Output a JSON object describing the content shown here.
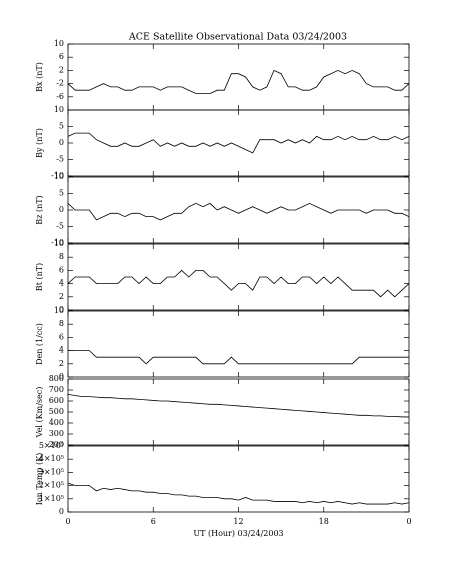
{
  "chart_data": [
    {
      "type": "line",
      "title": "ACE Satellite Observational Data   03/24/2003",
      "ylabel": "Bx (nT)",
      "xlim": [
        0,
        24
      ],
      "ylim": [
        -10,
        10
      ],
      "yticks": [
        -6,
        -2,
        2,
        6,
        10
      ],
      "color": "#000000",
      "x": [
        0,
        0.5,
        1,
        1.5,
        2,
        2.5,
        3,
        3.5,
        4,
        4.5,
        5,
        5.5,
        6,
        6.5,
        7,
        7.5,
        8,
        8.5,
        9,
        9.5,
        10,
        10.5,
        11,
        11.5,
        12,
        12.5,
        13,
        13.5,
        14,
        14.5,
        15,
        15.5,
        16,
        16.5,
        17,
        17.5,
        18,
        18.5,
        19,
        19.5,
        20,
        20.5,
        21,
        21.5,
        22,
        22.5,
        23,
        23.5,
        24
      ],
      "values": [
        -2,
        -4,
        -4,
        -4,
        -3,
        -2,
        -3,
        -3,
        -4,
        -4,
        -3,
        -3,
        -3,
        -4,
        -3,
        -3,
        -3,
        -4,
        -5,
        -5,
        -5,
        -4,
        -4,
        1,
        1,
        0,
        -3,
        -4,
        -3,
        2,
        1,
        -3,
        -3,
        -4,
        -4,
        -3,
        0,
        1,
        2,
        1,
        2,
        1,
        -2,
        -3,
        -3,
        -3,
        -4,
        -4,
        -2
      ]
    },
    {
      "type": "line",
      "ylabel": "By (nT)",
      "xlim": [
        0,
        24
      ],
      "ylim": [
        -10,
        10
      ],
      "yticks": [
        -10,
        -5,
        0,
        5,
        10
      ],
      "color": "#000000",
      "x": [
        0,
        0.5,
        1,
        1.5,
        2,
        2.5,
        3,
        3.5,
        4,
        4.5,
        5,
        5.5,
        6,
        6.5,
        7,
        7.5,
        8,
        8.5,
        9,
        9.5,
        10,
        10.5,
        11,
        11.5,
        12,
        12.5,
        13,
        13.5,
        14,
        14.5,
        15,
        15.5,
        16,
        16.5,
        17,
        17.5,
        18,
        18.5,
        19,
        19.5,
        20,
        20.5,
        21,
        21.5,
        22,
        22.5,
        23,
        23.5,
        24
      ],
      "values": [
        2,
        3,
        3,
        3,
        1,
        0,
        -1,
        -1,
        0,
        -1,
        -1,
        0,
        1,
        -1,
        0,
        -1,
        0,
        -1,
        -1,
        0,
        -1,
        0,
        -1,
        0,
        -1,
        -2,
        -3,
        1,
        1,
        1,
        0,
        1,
        0,
        1,
        0,
        2,
        1,
        1,
        2,
        1,
        2,
        1,
        1,
        2,
        1,
        1,
        2,
        1,
        2
      ]
    },
    {
      "type": "line",
      "ylabel": "Bz (nT)",
      "xlim": [
        0,
        24
      ],
      "ylim": [
        -10,
        10
      ],
      "yticks": [
        -10,
        -5,
        0,
        5,
        10
      ],
      "color": "#000000",
      "x": [
        0,
        0.5,
        1,
        1.5,
        2,
        2.5,
        3,
        3.5,
        4,
        4.5,
        5,
        5.5,
        6,
        6.5,
        7,
        7.5,
        8,
        8.5,
        9,
        9.5,
        10,
        10.5,
        11,
        11.5,
        12,
        12.5,
        13,
        13.5,
        14,
        14.5,
        15,
        15.5,
        16,
        16.5,
        17,
        17.5,
        18,
        18.5,
        19,
        19.5,
        20,
        20.5,
        21,
        21.5,
        22,
        22.5,
        23,
        23.5,
        24
      ],
      "values": [
        2,
        0,
        0,
        0,
        -3,
        -2,
        -1,
        -1,
        -2,
        -1,
        -1,
        -2,
        -2,
        -3,
        -2,
        -1,
        -1,
        1,
        2,
        1,
        2,
        0,
        1,
        0,
        -1,
        0,
        1,
        0,
        -1,
        0,
        1,
        0,
        0,
        1,
        2,
        1,
        0,
        -1,
        0,
        0,
        0,
        0,
        -1,
        0,
        0,
        0,
        -1,
        -1,
        -2
      ]
    },
    {
      "type": "line",
      "ylabel": "Bt (nT)",
      "xlim": [
        0,
        24
      ],
      "ylim": [
        0,
        10
      ],
      "yticks": [
        0,
        2,
        4,
        6,
        8,
        10
      ],
      "color": "#000000",
      "x": [
        0,
        0.5,
        1,
        1.5,
        2,
        2.5,
        3,
        3.5,
        4,
        4.5,
        5,
        5.5,
        6,
        6.5,
        7,
        7.5,
        8,
        8.5,
        9,
        9.5,
        10,
        10.5,
        11,
        11.5,
        12,
        12.5,
        13,
        13.5,
        14,
        14.5,
        15,
        15.5,
        16,
        16.5,
        17,
        17.5,
        18,
        18.5,
        19,
        19.5,
        20,
        20.5,
        21,
        21.5,
        22,
        22.5,
        23,
        23.5,
        24
      ],
      "values": [
        4,
        5,
        5,
        5,
        4,
        4,
        4,
        4,
        5,
        5,
        4,
        5,
        4,
        4,
        5,
        5,
        6,
        5,
        6,
        6,
        5,
        5,
        4,
        3,
        4,
        4,
        3,
        5,
        5,
        4,
        5,
        4,
        4,
        5,
        5,
        4,
        5,
        4,
        5,
        4,
        3,
        3,
        3,
        3,
        2,
        3,
        2,
        3,
        4
      ]
    },
    {
      "type": "line",
      "ylabel": "Den (1/cc)",
      "xlim": [
        0,
        24
      ],
      "ylim": [
        0,
        10
      ],
      "yticks": [
        0,
        2,
        4,
        6,
        8,
        10
      ],
      "color": "#000000",
      "x": [
        0,
        0.5,
        1,
        1.5,
        2,
        2.5,
        3,
        3.5,
        4,
        4.5,
        5,
        5.5,
        6,
        6.5,
        7,
        7.5,
        8,
        8.5,
        9,
        9.5,
        10,
        10.5,
        11,
        11.5,
        12,
        12.5,
        13,
        13.5,
        14,
        14.5,
        15,
        15.5,
        16,
        16.5,
        17,
        17.5,
        18,
        18.5,
        19,
        19.5,
        20,
        20.5,
        21,
        21.5,
        22,
        22.5,
        23,
        23.5,
        24
      ],
      "values": [
        4,
        4,
        4,
        4,
        3,
        3,
        3,
        3,
        3,
        3,
        3,
        2,
        3,
        3,
        3,
        3,
        3,
        3,
        3,
        2,
        2,
        2,
        2,
        3,
        2,
        2,
        2,
        2,
        2,
        2,
        2,
        2,
        2,
        2,
        2,
        2,
        2,
        2,
        2,
        2,
        2,
        3,
        3,
        3,
        3,
        3,
        3,
        3,
        3
      ]
    },
    {
      "type": "line",
      "ylabel": "Vel (Km/sec)",
      "xlim": [
        0,
        24
      ],
      "ylim": [
        200,
        800
      ],
      "yticks": [
        200,
        300,
        400,
        500,
        600,
        700,
        800
      ],
      "color": "#000000",
      "x": [
        0,
        0.5,
        1,
        1.5,
        2,
        2.5,
        3,
        3.5,
        4,
        4.5,
        5,
        5.5,
        6,
        6.5,
        7,
        7.5,
        8,
        8.5,
        9,
        9.5,
        10,
        10.5,
        11,
        11.5,
        12,
        12.5,
        13,
        13.5,
        14,
        14.5,
        15,
        15.5,
        16,
        16.5,
        17,
        17.5,
        18,
        18.5,
        19,
        19.5,
        20,
        20.5,
        21,
        21.5,
        22,
        22.5,
        23,
        23.5,
        24
      ],
      "values": [
        660,
        650,
        640,
        640,
        635,
        630,
        630,
        625,
        620,
        620,
        615,
        610,
        605,
        600,
        600,
        595,
        590,
        585,
        580,
        575,
        570,
        570,
        565,
        560,
        555,
        550,
        545,
        540,
        535,
        530,
        525,
        520,
        515,
        510,
        505,
        500,
        495,
        490,
        485,
        480,
        475,
        470,
        470,
        465,
        465,
        460,
        460,
        455,
        455
      ]
    },
    {
      "type": "line",
      "ylabel": "Ion Temp (K)",
      "xlabel": "UT (Hour)  03/24/2003",
      "xlim": [
        0,
        24
      ],
      "ylim": [
        0,
        500000
      ],
      "yticks": [
        0,
        {
          "value": 100000,
          "label": "1×10⁵"
        },
        {
          "value": 200000,
          "label": "2×10⁵"
        },
        {
          "value": 300000,
          "label": "3×10⁵"
        },
        {
          "value": 400000,
          "label": "4×10⁵"
        },
        {
          "value": 500000,
          "label": "5×10⁵"
        }
      ],
      "xticks": [
        0,
        6,
        12,
        18,
        {
          "value": 24,
          "label": "0"
        }
      ],
      "color": "#000000",
      "x": [
        0,
        0.5,
        1,
        1.5,
        2,
        2.5,
        3,
        3.5,
        4,
        4.5,
        5,
        5.5,
        6,
        6.5,
        7,
        7.5,
        8,
        8.5,
        9,
        9.5,
        10,
        10.5,
        11,
        11.5,
        12,
        12.5,
        13,
        13.5,
        14,
        14.5,
        15,
        15.5,
        16,
        16.5,
        17,
        17.5,
        18,
        18.5,
        19,
        19.5,
        20,
        20.5,
        21,
        21.5,
        22,
        22.5,
        23,
        23.5,
        24
      ],
      "values": [
        220000,
        200000,
        200000,
        200000,
        160000,
        180000,
        170000,
        180000,
        170000,
        160000,
        160000,
        150000,
        150000,
        140000,
        140000,
        130000,
        130000,
        120000,
        120000,
        110000,
        110000,
        110000,
        100000,
        100000,
        90000,
        110000,
        90000,
        90000,
        90000,
        80000,
        80000,
        80000,
        80000,
        70000,
        80000,
        70000,
        80000,
        70000,
        80000,
        70000,
        60000,
        70000,
        60000,
        60000,
        60000,
        60000,
        70000,
        60000,
        70000
      ]
    }
  ]
}
